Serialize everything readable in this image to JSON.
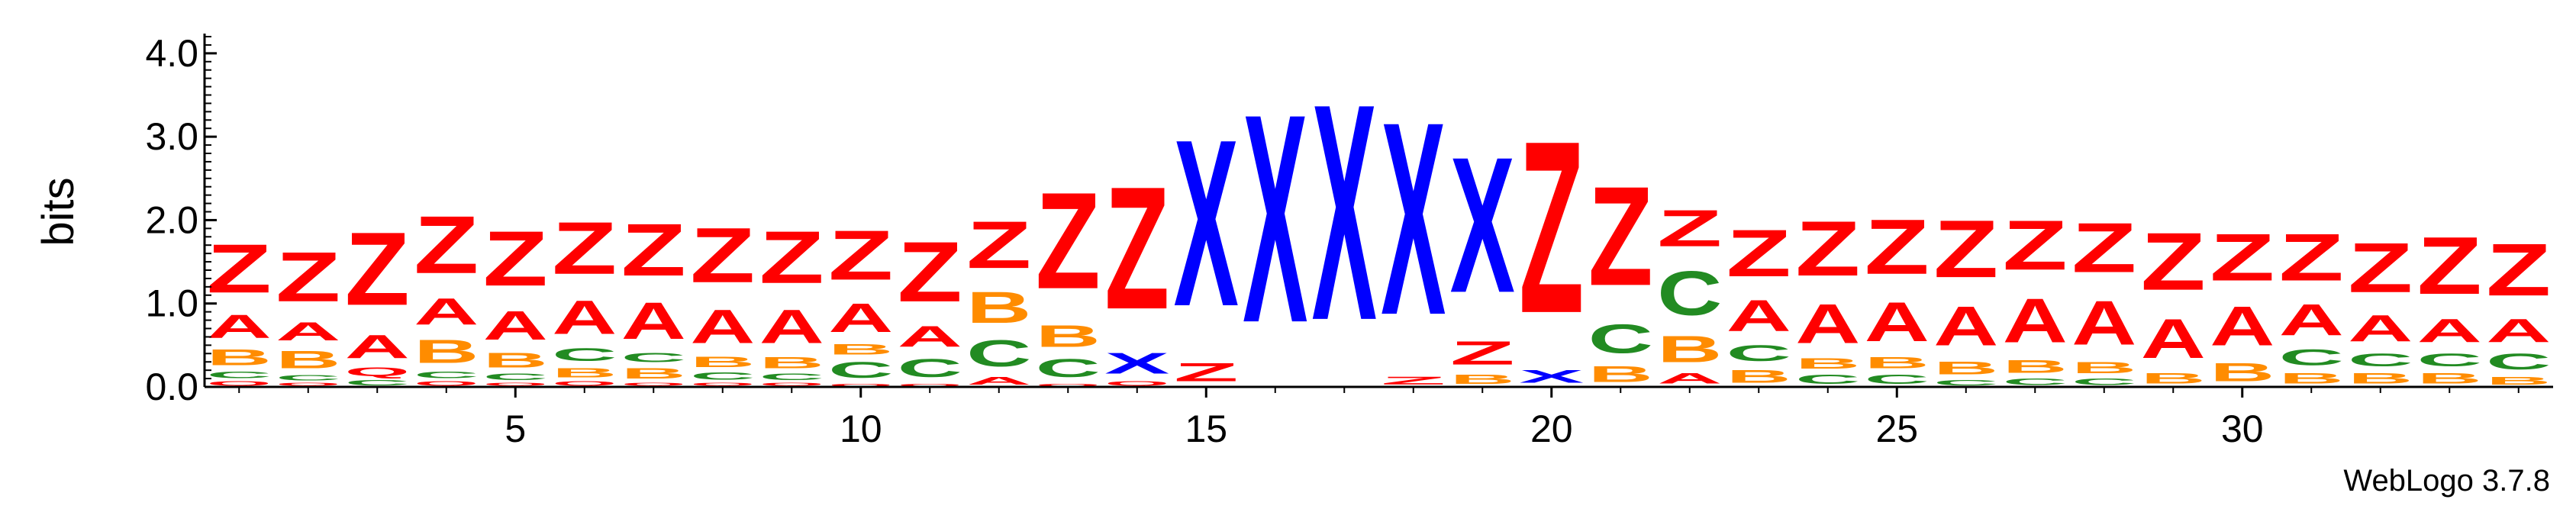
{
  "chart_data": {
    "type": "sequence-logo",
    "ylabel": "bits",
    "ylim": [
      0,
      4.2
    ],
    "y_ticks": [
      "0.0",
      "1.0",
      "2.0",
      "3.0",
      "4.0"
    ],
    "x_ticks": [
      5,
      10,
      15,
      20,
      25,
      30
    ],
    "positions": 34,
    "colors": {
      "Z": "#ff0000",
      "A": "#ff0000",
      "X": "#0000ff",
      "B": "#ff8c00",
      "C": "#228b22",
      "Q": "#ff0000"
    },
    "columns": [
      [
        [
          "Q",
          0.08
        ],
        [
          "C",
          0.12
        ],
        [
          "B",
          0.3
        ],
        [
          "A",
          0.45
        ],
        [
          "Z",
          0.93
        ]
      ],
      [
        [
          "Q",
          0.06
        ],
        [
          "C",
          0.1
        ],
        [
          "B",
          0.33
        ],
        [
          "A",
          0.35
        ],
        [
          "Z",
          0.95
        ]
      ],
      [
        [
          "C",
          0.1
        ],
        [
          "Q",
          0.16
        ],
        [
          "A",
          0.45
        ],
        [
          "Z",
          1.4
        ]
      ],
      [
        [
          "Q",
          0.08
        ],
        [
          "C",
          0.12
        ],
        [
          "B",
          0.45
        ],
        [
          "A",
          0.5
        ],
        [
          "Z",
          1.1
        ]
      ],
      [
        [
          "Q",
          0.06
        ],
        [
          "C",
          0.12
        ],
        [
          "B",
          0.28
        ],
        [
          "A",
          0.55
        ],
        [
          "Z",
          1.05
        ]
      ],
      [
        [
          "Q",
          0.08
        ],
        [
          "B",
          0.18
        ],
        [
          "C",
          0.25
        ],
        [
          "A",
          0.65
        ],
        [
          "Z",
          1.0
        ]
      ],
      [
        [
          "Q",
          0.06
        ],
        [
          "B",
          0.2
        ],
        [
          "C",
          0.18
        ],
        [
          "A",
          0.7
        ],
        [
          "Z",
          1.0
        ]
      ],
      [
        [
          "Q",
          0.06
        ],
        [
          "C",
          0.14
        ],
        [
          "B",
          0.2
        ],
        [
          "A",
          0.65
        ],
        [
          "Z",
          1.05
        ]
      ],
      [
        [
          "Q",
          0.06
        ],
        [
          "C",
          0.12
        ],
        [
          "B",
          0.22
        ],
        [
          "A",
          0.65
        ],
        [
          "Z",
          1.0
        ]
      ],
      [
        [
          "Q",
          0.05
        ],
        [
          "C",
          0.3
        ],
        [
          "B",
          0.2
        ],
        [
          "A",
          0.55
        ],
        [
          "Z",
          0.95
        ]
      ],
      [
        [
          "Q",
          0.05
        ],
        [
          "C",
          0.35
        ],
        [
          "A",
          0.4
        ],
        [
          "Z",
          1.15
        ]
      ],
      [
        [
          "A",
          0.15
        ],
        [
          "C",
          0.5
        ],
        [
          "B",
          0.6
        ],
        [
          "Z",
          0.9
        ]
      ],
      [
        [
          "Q",
          0.05
        ],
        [
          "C",
          0.35
        ],
        [
          "B",
          0.42
        ],
        [
          "Z",
          1.85
        ]
      ],
      [
        [
          "Q",
          0.08
        ],
        [
          "X",
          0.4
        ],
        [
          "Z",
          2.35
        ]
      ],
      [
        [
          "Z",
          0.35
        ],
        [
          "X",
          3.2
        ]
      ],
      [
        [
          "X",
          4.0
        ]
      ],
      [
        [
          "X",
          4.15
        ]
      ],
      [
        [
          "Z",
          0.15
        ],
        [
          "X",
          3.7
        ]
      ],
      [
        [
          "B",
          0.18
        ],
        [
          "Z",
          0.45
        ],
        [
          "X",
          2.6
        ]
      ],
      [
        [
          "X",
          0.25
        ],
        [
          "Z",
          3.3
        ]
      ],
      [
        [
          "B",
          0.3
        ],
        [
          "C",
          0.55
        ],
        [
          "Z",
          1.9
        ]
      ],
      [
        [
          "A",
          0.2
        ],
        [
          "B",
          0.5
        ],
        [
          "C",
          0.85
        ],
        [
          "Z",
          0.7
        ]
      ],
      [
        [
          "B",
          0.25
        ],
        [
          "C",
          0.3
        ],
        [
          "A",
          0.6
        ],
        [
          "Z",
          0.9
        ]
      ],
      [
        [
          "C",
          0.18
        ],
        [
          "B",
          0.2
        ],
        [
          "A",
          0.75
        ],
        [
          "Z",
          1.05
        ]
      ],
      [
        [
          "C",
          0.18
        ],
        [
          "B",
          0.22
        ],
        [
          "A",
          0.75
        ],
        [
          "Z",
          1.05
        ]
      ],
      [
        [
          "C",
          0.1
        ],
        [
          "B",
          0.25
        ],
        [
          "A",
          0.75
        ],
        [
          "Z",
          1.1
        ]
      ],
      [
        [
          "C",
          0.12
        ],
        [
          "B",
          0.25
        ],
        [
          "A",
          0.85
        ],
        [
          "Z",
          0.95
        ]
      ],
      [
        [
          "C",
          0.12
        ],
        [
          "B",
          0.22
        ],
        [
          "A",
          0.85
        ],
        [
          "Z",
          0.95
        ]
      ],
      [
        [
          "B",
          0.2
        ],
        [
          "A",
          0.75
        ],
        [
          "Z",
          1.1
        ]
      ],
      [
        [
          "B",
          0.35
        ],
        [
          "A",
          0.75
        ],
        [
          "Z",
          0.9
        ]
      ],
      [
        [
          "B",
          0.2
        ],
        [
          "C",
          0.3
        ],
        [
          "A",
          0.6
        ],
        [
          "Z",
          0.9
        ]
      ],
      [
        [
          "B",
          0.2
        ],
        [
          "C",
          0.25
        ],
        [
          "A",
          0.5
        ],
        [
          "Z",
          0.95
        ]
      ],
      [
        [
          "B",
          0.2
        ],
        [
          "C",
          0.25
        ],
        [
          "A",
          0.45
        ],
        [
          "Z",
          1.1
        ]
      ],
      [
        [
          "B",
          0.15
        ],
        [
          "C",
          0.3
        ],
        [
          "A",
          0.45
        ],
        [
          "Z",
          1.0
        ]
      ]
    ]
  },
  "footer": {
    "credit": "WebLogo 3.7.8"
  }
}
